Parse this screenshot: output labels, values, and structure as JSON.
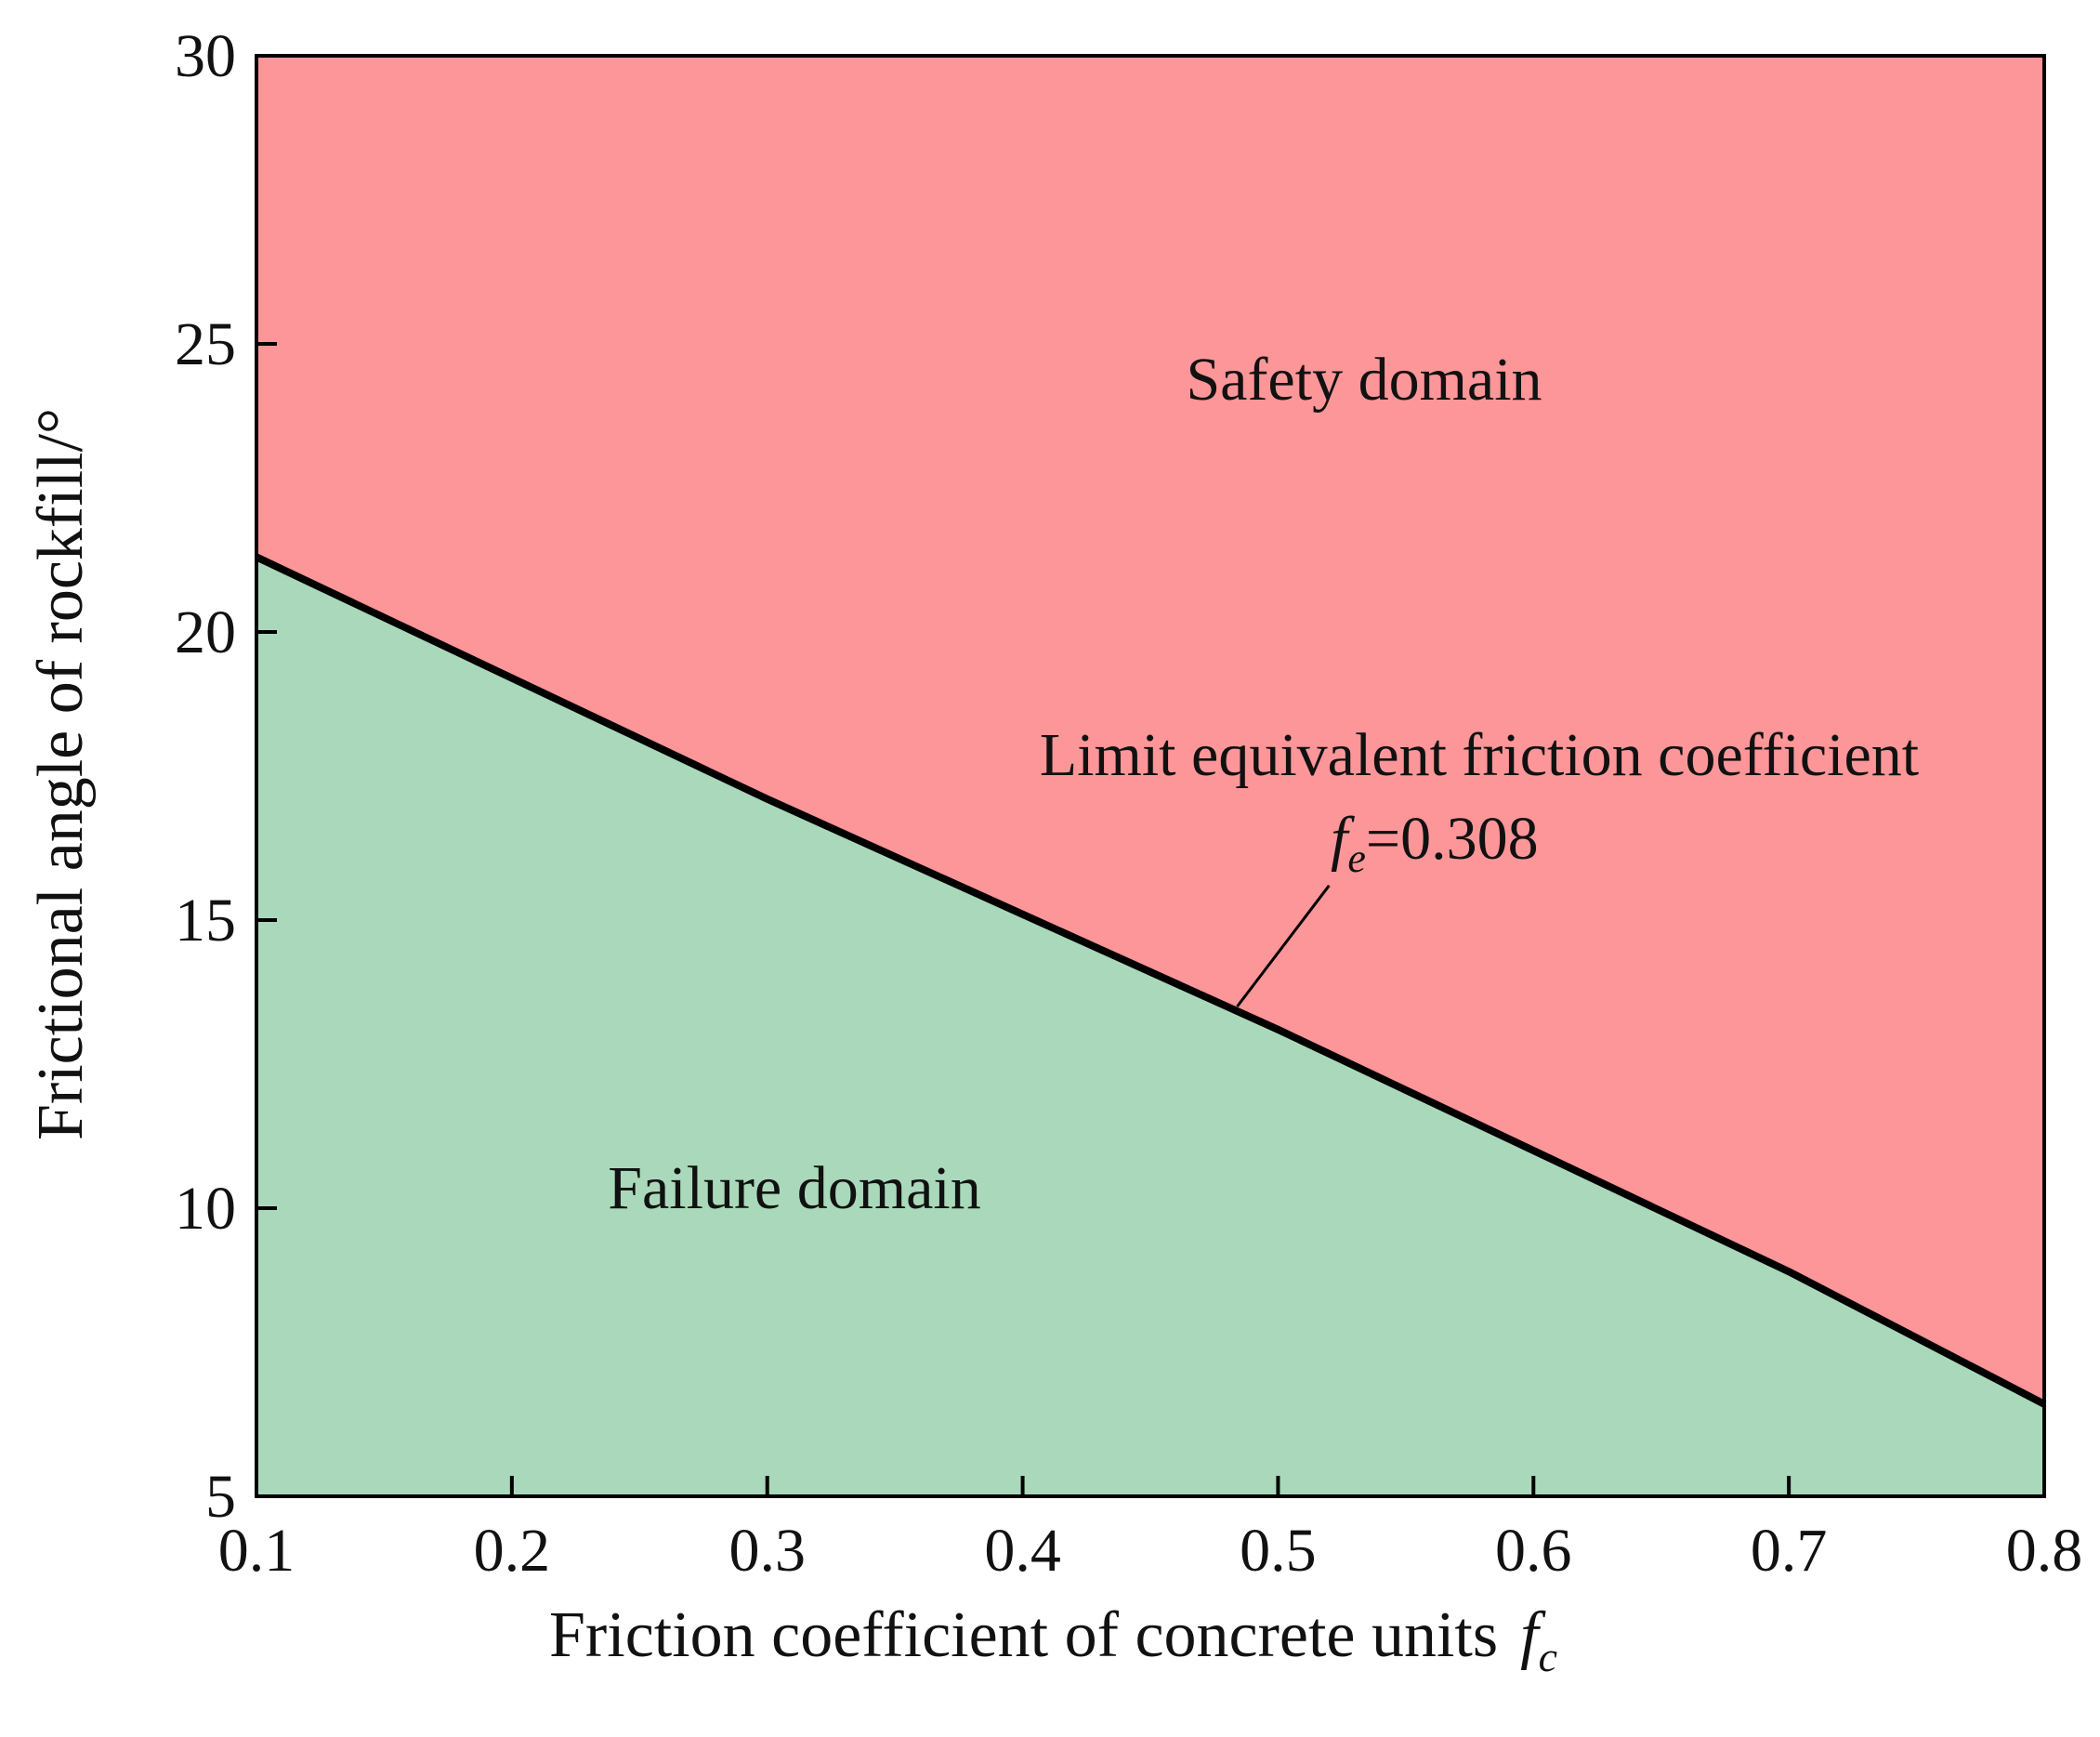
{
  "chart_data": {
    "type": "area",
    "x_label_main": "Friction coefficient of concrete units",
    "x_label_symbol": "f",
    "x_label_subscript": "c",
    "y_label": "Frictional angle of rockfill/°",
    "xlim": [
      0.1,
      0.8
    ],
    "ylim": [
      5,
      30
    ],
    "x_ticks": [
      "0.1",
      "0.2",
      "0.3",
      "0.4",
      "0.5",
      "0.6",
      "0.7",
      "0.8"
    ],
    "y_ticks": [
      "5",
      "10",
      "15",
      "20",
      "25",
      "30"
    ],
    "grid": false,
    "boundary": {
      "x": [
        0.1,
        0.2,
        0.3,
        0.4,
        0.5,
        0.6,
        0.7,
        0.8
      ],
      "y": [
        21.3,
        19.2,
        17.1,
        15.1,
        13.1,
        11.0,
        8.9,
        6.6
      ]
    },
    "regions": [
      {
        "name": "Safety domain",
        "color": "#fd9698"
      },
      {
        "name": "Failure domain",
        "color": "#a9d9ba"
      }
    ],
    "annotation": {
      "line1": "Limit equivalent friction coefficient",
      "symbol": "f",
      "subscript": "e",
      "value_text": "=0.308",
      "pointer_from": [
        0.52,
        15.6
      ],
      "pointer_to": [
        0.484,
        13.5
      ]
    }
  }
}
